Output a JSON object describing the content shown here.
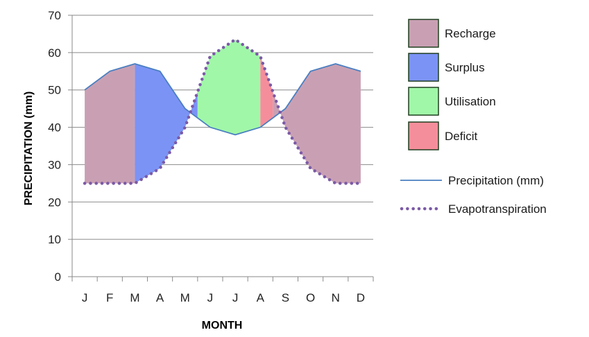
{
  "chart_data": {
    "type": "area",
    "title": "",
    "xlabel": "MONTH",
    "ylabel": "PRECIPITATION (mm)",
    "categories": [
      "J",
      "F",
      "M",
      "A",
      "M",
      "J",
      "J",
      "A",
      "S",
      "O",
      "N",
      "D"
    ],
    "ylim": [
      0,
      70
    ],
    "yticks": [
      0,
      10,
      20,
      30,
      40,
      50,
      60,
      70
    ],
    "grid": true,
    "legend_position": "right",
    "series": [
      {
        "name": "Precipitation (mm)",
        "style": "line",
        "color": "#4a7fc1",
        "values": [
          50,
          55,
          57,
          55,
          45,
          40,
          38,
          40,
          45,
          55,
          57,
          55
        ]
      },
      {
        "name": "Evapotranspiration",
        "style": "dotted",
        "color": "#7b5aa6",
        "values": [
          25,
          25,
          25,
          29,
          40,
          59,
          63.5,
          59,
          40,
          29,
          25,
          25
        ]
      }
    ],
    "zones": [
      {
        "name": "Recharge",
        "color": "#c9a0b3",
        "from": 0,
        "to": 2
      },
      {
        "name": "Surplus",
        "color": "#7b93f5",
        "from": 2,
        "to": 4.5
      },
      {
        "name": "Utilisation",
        "color": "#a0f7a8",
        "from": 4.5,
        "to": 7
      },
      {
        "name": "Deficit",
        "color": "#f58e9b",
        "from": 7,
        "to": 7.5
      },
      {
        "name": "Recharge",
        "color": "#c9a0b3",
        "from": 7.5,
        "to": 11
      }
    ]
  },
  "legend": {
    "items": [
      {
        "label": "Recharge",
        "color": "#c9a0b3"
      },
      {
        "label": "Surplus",
        "color": "#7b93f5"
      },
      {
        "label": "Utilisation",
        "color": "#a0f7a8"
      },
      {
        "label": "Deficit",
        "color": "#f58e9b"
      }
    ],
    "line_items": [
      {
        "label": "Precipitation (mm)",
        "style": "line",
        "color": "#4a7fc1"
      },
      {
        "label": "Evapotranspiration",
        "style": "dotted",
        "color": "#7b5aa6"
      }
    ]
  }
}
